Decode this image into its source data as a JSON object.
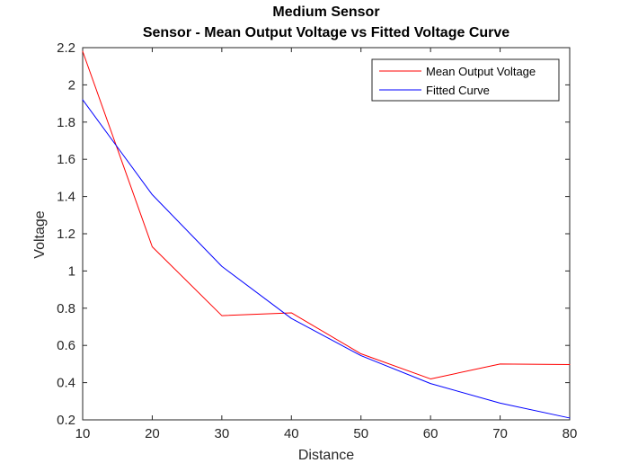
{
  "chart_data": {
    "type": "line",
    "title": [
      "Medium Sensor",
      "Sensor - Mean Output Voltage vs Fitted Voltage Curve"
    ],
    "xlabel": "Distance",
    "ylabel": "Voltage",
    "xlim": [
      10,
      80
    ],
    "ylim": [
      0.2,
      2.2
    ],
    "x": [
      10,
      20,
      30,
      40,
      50,
      60,
      70,
      80
    ],
    "xticks": [
      10,
      20,
      30,
      40,
      50,
      60,
      70,
      80
    ],
    "xtick_labels": [
      "10",
      "20",
      "30",
      "40",
      "50",
      "60",
      "70",
      "80"
    ],
    "yticks": [
      0.2,
      0.4,
      0.6,
      0.8,
      1.0,
      1.2,
      1.4,
      1.6,
      1.8,
      2.0,
      2.2
    ],
    "ytick_labels": [
      "0.2",
      "0.4",
      "0.6",
      "0.8",
      "1",
      "1.2",
      "1.4",
      "1.6",
      "1.8",
      "2",
      "2.2"
    ],
    "grid": false,
    "legend_position": "top-right",
    "series": [
      {
        "name": "Mean Output Voltage",
        "color": "#ff0000",
        "values": [
          2.18,
          1.13,
          0.76,
          0.775,
          0.555,
          0.42,
          0.5,
          0.497
        ]
      },
      {
        "name": "Fitted Curve",
        "color": "#0000ff",
        "values": [
          1.92,
          1.41,
          1.025,
          0.745,
          0.545,
          0.395,
          0.29,
          0.21
        ]
      }
    ]
  }
}
